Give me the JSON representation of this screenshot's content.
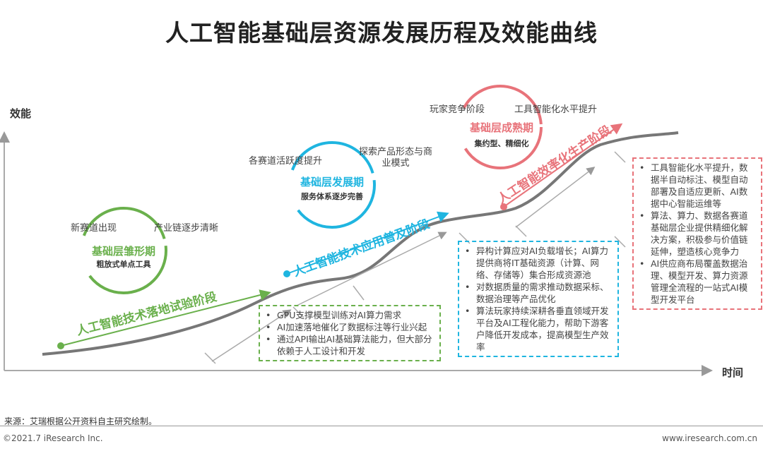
{
  "title": "人工智能基础层资源发展历程及效能曲线",
  "axes": {
    "y": "效能",
    "x": "时间"
  },
  "stages": [
    {
      "name": "基础层雏形期",
      "sub": "粗放式单点工具",
      "labels": [
        "新赛道出现",
        "产业链逐步清晰"
      ],
      "phase": "人工智能技术落地试验阶段",
      "color": "#6ab04c",
      "bullets": [
        "GPU支撑模型训练对AI算力需求",
        "AI加速落地催化了数据标注等行业兴起",
        "通过API输出AI基础算法能力，但大部分依赖于人工设计和开发"
      ]
    },
    {
      "name": "基础层发展期",
      "sub": "服务体系逐步完善",
      "labels": [
        "各赛道活跃度提升",
        "探索产品形态与商业模式"
      ],
      "phase": "人工智能技术应用普及阶段",
      "color": "#1fb5e0",
      "bullets": [
        "异构计算应对AI负载增长；AI算力提供商将IT基础资源（计算、网络、存储等）集合形成资源池",
        "对数据质量的需求推动数据采标、数据治理等产品优化",
        "算法玩家持续深耕各垂直领域开发平台及AI工程化能力，帮助下游客户降低开发成本，提高模型生产效率"
      ]
    },
    {
      "name": "基础层成熟期",
      "sub": "集约型、精细化",
      "labels": [
        "玩家竞争阶段",
        "工具智能化水平提升"
      ],
      "phase": "人工智能效率化生产阶段",
      "color": "#e8737a",
      "bullets": [
        "工具智能化水平提升，数据半自动标注、模型自动部署及自适应更新、AI数据中心智能运维等",
        "算法、算力、数据各赛道基础层企业提供精细化解决方案，积极参与价值链延伸，塑造核心竞争力",
        "AI供应商布局覆盖数据治理、模型开发、算力资源管理全流程的一站式AI模型开发平台"
      ]
    }
  ],
  "footer": {
    "source": "来源：艾瑞根据公开资料自主研究绘制。",
    "copyright": "©2021.7 iResearch Inc.",
    "url": "www.iresearch.com.cn"
  }
}
